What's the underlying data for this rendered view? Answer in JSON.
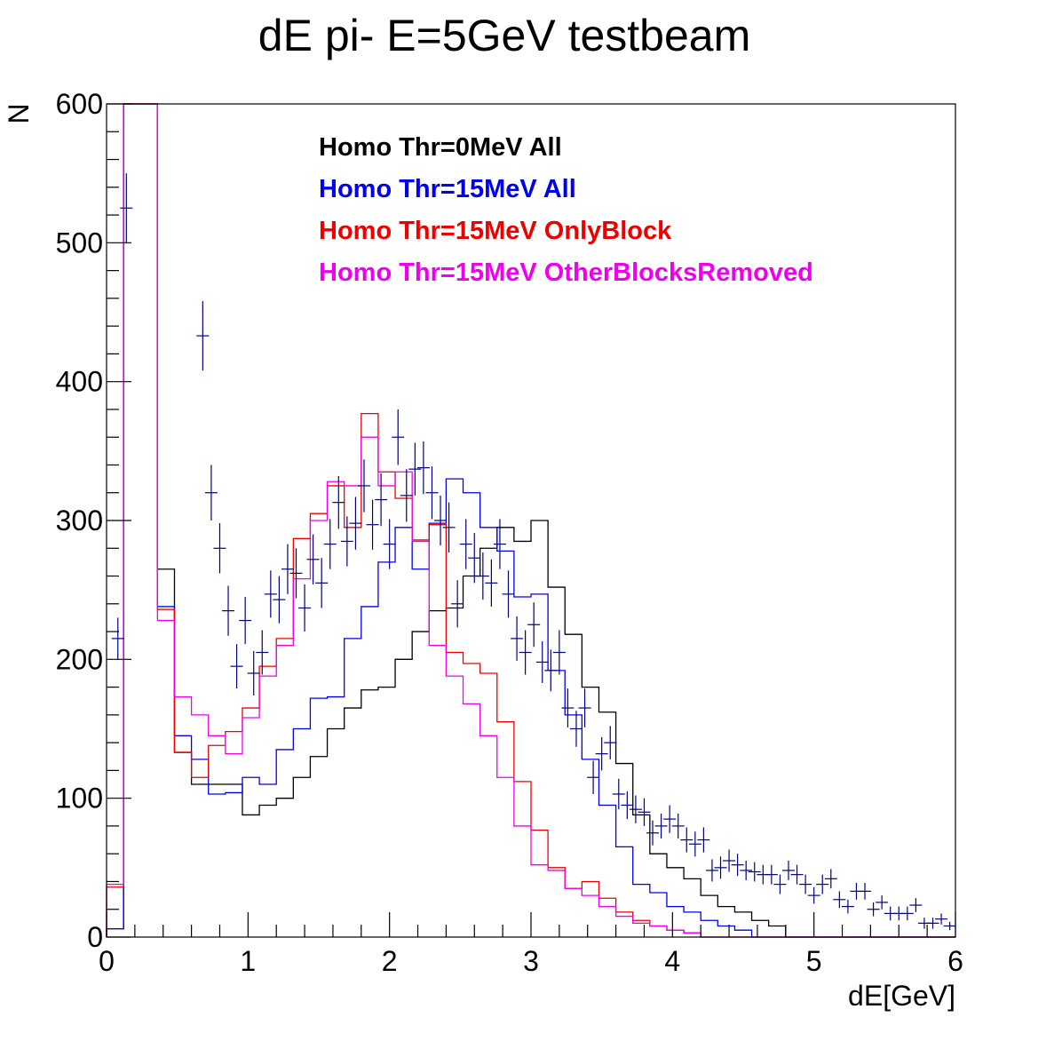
{
  "chart_data": {
    "type": "line",
    "title": "dE pi- E=5GeV testbeam",
    "xlabel": "dE[GeV]",
    "ylabel": "N",
    "xlim": [
      0,
      6
    ],
    "ylim": [
      0,
      600
    ],
    "xticks": [
      "0",
      "1",
      "2",
      "3",
      "4",
      "5",
      "6"
    ],
    "yticks": [
      "0",
      "100",
      "200",
      "300",
      "400",
      "500",
      "600"
    ],
    "bin_edges": [
      0,
      0.12,
      0.36,
      0.48,
      0.6,
      0.72,
      0.84,
      0.96,
      1.08,
      1.2,
      1.32,
      1.44,
      1.56,
      1.68,
      1.8,
      1.92,
      2.04,
      2.16,
      2.28,
      2.4,
      2.52,
      2.64,
      2.76,
      2.88,
      3.0,
      3.12,
      3.24,
      3.36,
      3.48,
      3.6,
      3.72,
      3.84,
      3.96,
      4.08,
      4.2,
      4.32,
      4.44,
      4.56,
      4.68,
      4.8,
      6.0
    ],
    "series": [
      {
        "name": "Homo Thr=0MeV All",
        "color": "#000000",
        "style": "step",
        "values": [
          6,
          600,
          265,
          133,
          110,
          110,
          110,
          88,
          95,
          100,
          115,
          130,
          150,
          165,
          178,
          180,
          200,
          220,
          235,
          237,
          260,
          280,
          295,
          285,
          300,
          252,
          218,
          180,
          162,
          125,
          88,
          60,
          50,
          42,
          30,
          22,
          18,
          12,
          8,
          0
        ]
      },
      {
        "name": "Homo Thr=15MeV All",
        "color": "#0000ee",
        "style": "step",
        "values": [
          6,
          600,
          238,
          145,
          128,
          103,
          104,
          115,
          110,
          135,
          150,
          172,
          173,
          215,
          238,
          270,
          295,
          265,
          298,
          330,
          320,
          295,
          278,
          245,
          247,
          192,
          160,
          128,
          95,
          65,
          38,
          32,
          22,
          18,
          12,
          8,
          5,
          0,
          0,
          0
        ]
      },
      {
        "name": "Homo Thr=15MeV OnlyBlock",
        "color": "#ee0000",
        "style": "step",
        "values": [
          36,
          600,
          236,
          133,
          115,
          138,
          148,
          165,
          195,
          215,
          287,
          305,
          325,
          295,
          377,
          335,
          316,
          286,
          297,
          205,
          197,
          190,
          155,
          112,
          77,
          50,
          35,
          40,
          28,
          18,
          12,
          8,
          5,
          3,
          0,
          0,
          0,
          0,
          0,
          0
        ]
      },
      {
        "name": "Homo Thr=15MeV OtherBlocksRemoved",
        "color": "#ee00ee",
        "style": "step",
        "values": [
          38,
          600,
          228,
          173,
          160,
          145,
          132,
          158,
          188,
          210,
          258,
          300,
          328,
          325,
          360,
          325,
          335,
          285,
          210,
          188,
          168,
          145,
          115,
          80,
          52,
          48,
          35,
          30,
          22,
          15,
          10,
          8,
          5,
          3,
          0,
          0,
          0,
          0,
          0,
          0
        ]
      },
      {
        "name": "",
        "color": "#000080",
        "style": "points",
        "points": [
          [
            0.08,
            215,
            15
          ],
          [
            0.14,
            525,
            25
          ],
          [
            0.68,
            433,
            25
          ],
          [
            0.74,
            320,
            20
          ],
          [
            0.8,
            280,
            18
          ],
          [
            0.86,
            235,
            18
          ],
          [
            0.92,
            195,
            16
          ],
          [
            0.98,
            228,
            17
          ],
          [
            1.04,
            190,
            16
          ],
          [
            1.1,
            205,
            16
          ],
          [
            1.16,
            247,
            17
          ],
          [
            1.22,
            243,
            17
          ],
          [
            1.28,
            265,
            18
          ],
          [
            1.34,
            262,
            18
          ],
          [
            1.4,
            237,
            17
          ],
          [
            1.46,
            272,
            18
          ],
          [
            1.52,
            255,
            18
          ],
          [
            1.58,
            283,
            18
          ],
          [
            1.64,
            313,
            19
          ],
          [
            1.7,
            285,
            18
          ],
          [
            1.76,
            298,
            19
          ],
          [
            1.82,
            325,
            19
          ],
          [
            1.88,
            297,
            18
          ],
          [
            1.94,
            315,
            19
          ],
          [
            2.0,
            283,
            18
          ],
          [
            2.06,
            360,
            20
          ],
          [
            2.12,
            318,
            19
          ],
          [
            2.18,
            337,
            19
          ],
          [
            2.24,
            338,
            19
          ],
          [
            2.3,
            320,
            19
          ],
          [
            2.36,
            300,
            18
          ],
          [
            2.42,
            295,
            18
          ],
          [
            2.48,
            240,
            17
          ],
          [
            2.54,
            283,
            18
          ],
          [
            2.6,
            273,
            18
          ],
          [
            2.66,
            260,
            17
          ],
          [
            2.72,
            255,
            17
          ],
          [
            2.78,
            283,
            18
          ],
          [
            2.84,
            247,
            17
          ],
          [
            2.9,
            215,
            16
          ],
          [
            2.96,
            205,
            16
          ],
          [
            3.02,
            225,
            16
          ],
          [
            3.08,
            198,
            15
          ],
          [
            3.14,
            192,
            15
          ],
          [
            3.2,
            205,
            16
          ],
          [
            3.26,
            165,
            14
          ],
          [
            3.32,
            150,
            13
          ],
          [
            3.38,
            165,
            14
          ],
          [
            3.44,
            115,
            12
          ],
          [
            3.5,
            132,
            12
          ],
          [
            3.56,
            140,
            12
          ],
          [
            3.62,
            103,
            11
          ],
          [
            3.68,
            95,
            10
          ],
          [
            3.74,
            92,
            10
          ],
          [
            3.8,
            90,
            10
          ],
          [
            3.86,
            75,
            9
          ],
          [
            3.92,
            80,
            9
          ],
          [
            3.98,
            85,
            10
          ],
          [
            4.04,
            80,
            9
          ],
          [
            4.1,
            70,
            9
          ],
          [
            4.16,
            67,
            9
          ],
          [
            4.22,
            70,
            9
          ],
          [
            4.28,
            48,
            8
          ],
          [
            4.34,
            50,
            8
          ],
          [
            4.4,
            55,
            8
          ],
          [
            4.46,
            52,
            8
          ],
          [
            4.52,
            48,
            7
          ],
          [
            4.58,
            47,
            7
          ],
          [
            4.64,
            45,
            7
          ],
          [
            4.7,
            45,
            7
          ],
          [
            4.76,
            38,
            7
          ],
          [
            4.82,
            48,
            7
          ],
          [
            4.88,
            45,
            7
          ],
          [
            4.94,
            38,
            7
          ],
          [
            5.0,
            30,
            6
          ],
          [
            5.06,
            38,
            7
          ],
          [
            5.12,
            42,
            7
          ],
          [
            5.18,
            27,
            6
          ],
          [
            5.24,
            22,
            5
          ],
          [
            5.3,
            33,
            6
          ],
          [
            5.36,
            33,
            6
          ],
          [
            5.42,
            20,
            5
          ],
          [
            5.48,
            25,
            5
          ],
          [
            5.54,
            17,
            5
          ],
          [
            5.6,
            17,
            5
          ],
          [
            5.66,
            17,
            5
          ],
          [
            5.72,
            23,
            5
          ],
          [
            5.78,
            10,
            4
          ],
          [
            5.84,
            10,
            4
          ],
          [
            5.9,
            13,
            4
          ],
          [
            5.96,
            8,
            3
          ]
        ]
      }
    ],
    "legend": {
      "position": "top",
      "entries": [
        "Homo Thr=0MeV All",
        "Homo Thr=15MeV All",
        "Homo Thr=15MeV OnlyBlock",
        "Homo Thr=15MeV OtherBlocksRemoved"
      ]
    },
    "grid": false
  }
}
